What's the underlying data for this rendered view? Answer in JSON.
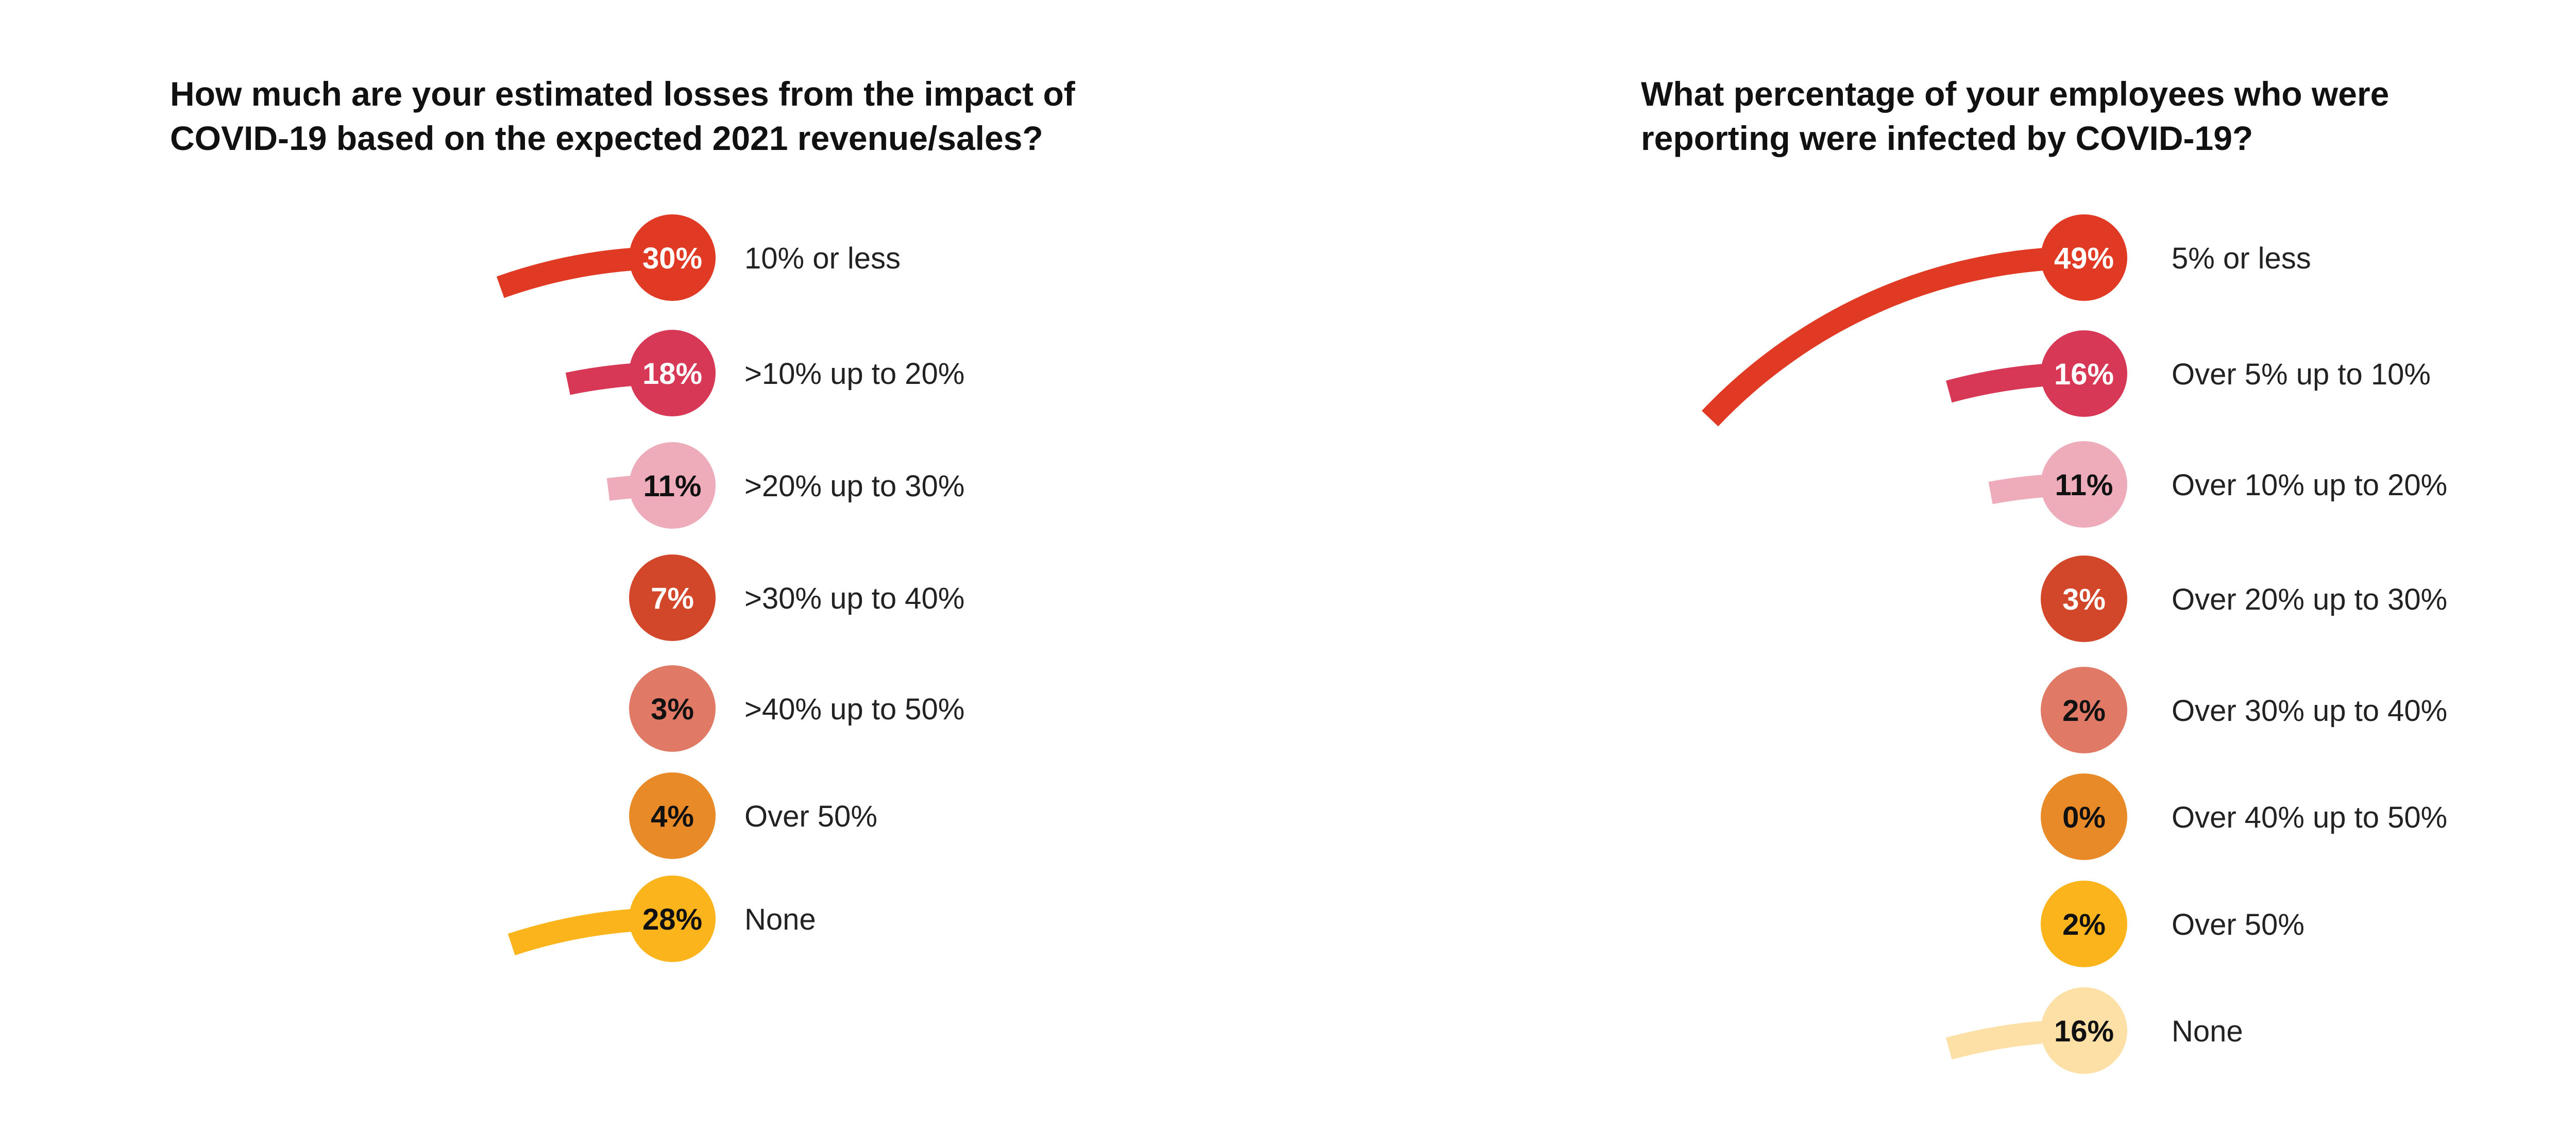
{
  "chart_data": [
    {
      "type": "radial-bar",
      "title_lines": [
        "How much are your estimated losses from the impact of",
        "COVID-19 based on the expected 2021 revenue/sales?"
      ],
      "categories": [
        "10% or less",
        ">10% up to 20%",
        ">20% up to 30%",
        ">30% up to 40%",
        ">40% up to 50%",
        "Over 50%",
        "None"
      ],
      "values": [
        30,
        18,
        11,
        7,
        3,
        4,
        28
      ],
      "value_labels": [
        "30%",
        "18%",
        "11%",
        "7%",
        "3%",
        "4%",
        "28%"
      ],
      "colors": [
        "#e03a25",
        "#d63856",
        "#eeacbb",
        "#d2472a",
        "#e07a66",
        "#e88a28",
        "#fbb41b"
      ],
      "label_colors": [
        "#ffffff",
        "#ffffff",
        "#111111",
        "#ffffff",
        "#111111",
        "#111111",
        "#111111"
      ]
    },
    {
      "type": "radial-bar",
      "title_lines": [
        "What percentage of your employees who were",
        "reporting were infected by COVID-19?"
      ],
      "categories": [
        "5% or less",
        "Over 5% up to 10%",
        "Over 10% up to 20%",
        "Over 20% up to 30%",
        "Over 30% up to 40%",
        "Over 40% up to 50%",
        "Over 50%",
        "None"
      ],
      "values": [
        49,
        16,
        11,
        3,
        2,
        0,
        2,
        16
      ],
      "value_labels": [
        "49%",
        "16%",
        "11%",
        "3%",
        "2%",
        "0%",
        "2%",
        "16%"
      ],
      "colors": [
        "#e03a25",
        "#d63856",
        "#eeacbb",
        "#d2472a",
        "#e07a66",
        "#e88a28",
        "#fbb41b",
        "#fde0a6"
      ],
      "label_colors": [
        "#ffffff",
        "#ffffff",
        "#111111",
        "#ffffff",
        "#111111",
        "#111111",
        "#111111",
        "#111111"
      ]
    }
  ]
}
